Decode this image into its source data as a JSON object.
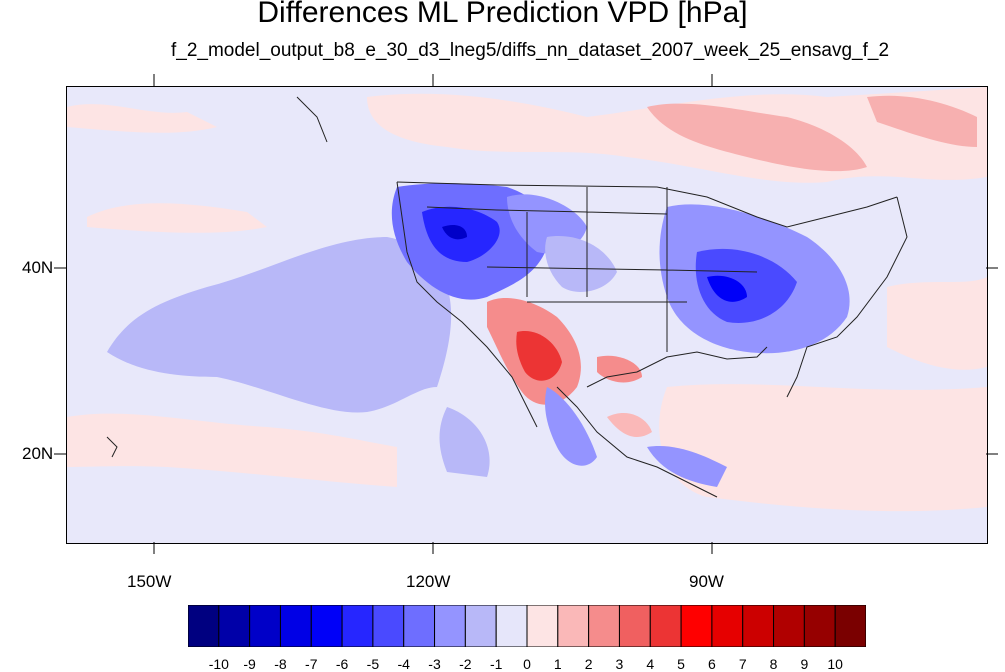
{
  "title": "Differences ML Prediction VPD [hPa]",
  "subtitle": "f_2_model_output_b8_e_30_d3_lneg5/diffs_nn_dataset_2007_week_25_ensavg_f_2",
  "map": {
    "lon_labels": [
      "150W",
      "120W",
      "90W"
    ],
    "lat_labels": [
      "40N",
      "20N"
    ]
  },
  "colorbar": {
    "labels": [
      "-10",
      "-9",
      "-8",
      "-7",
      "-6",
      "-5",
      "-4",
      "-3",
      "-2",
      "-1",
      "0",
      "1",
      "2",
      "3",
      "4",
      "5",
      "6",
      "7",
      "8",
      "9",
      "10"
    ],
    "colors": [
      "#000080",
      "#0000a8",
      "#0000c8",
      "#0000e6",
      "#0000f8",
      "#2626ff",
      "#4a4aff",
      "#6e6eff",
      "#9494ff",
      "#b8b8f8",
      "#e6e6fa",
      "#fde4e4",
      "#fab8b8",
      "#f58c8c",
      "#f06060",
      "#ec3434",
      "#ff0000",
      "#e60000",
      "#cc0000",
      "#b00000",
      "#960000",
      "#7a0000"
    ]
  }
}
